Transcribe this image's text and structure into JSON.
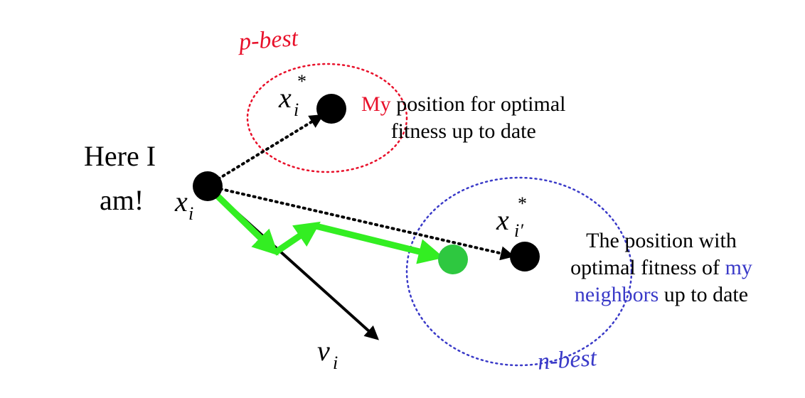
{
  "colors": {
    "pbest": "#e8102a",
    "nbest": "#3a3ac8",
    "green": "#33ee22",
    "green_dot": "#2ec840",
    "ink": "#000000"
  },
  "labels": {
    "pbest": "p-best",
    "nbest": "n-best",
    "here_line1": "Here I",
    "here_line2": "am!",
    "x": "x",
    "v": "v",
    "sub_i": "i",
    "sub_iprime": "i′",
    "star": "*"
  },
  "pbest_desc": {
    "my": "My",
    "line1_rest": " position for optimal",
    "line2": "fitness up to date"
  },
  "nbest_desc": {
    "line1": "The  position with",
    "line2_a": "optimal fitness of ",
    "line2_my": "my",
    "line3_neighbors": "neighbors",
    "line3_rest": " up to date"
  },
  "icons": {
    "current": "current-position-dot",
    "pbest_point": "pbest-point-dot",
    "nbest_point": "nbest-point-dot",
    "new_position": "new-position-dot"
  }
}
